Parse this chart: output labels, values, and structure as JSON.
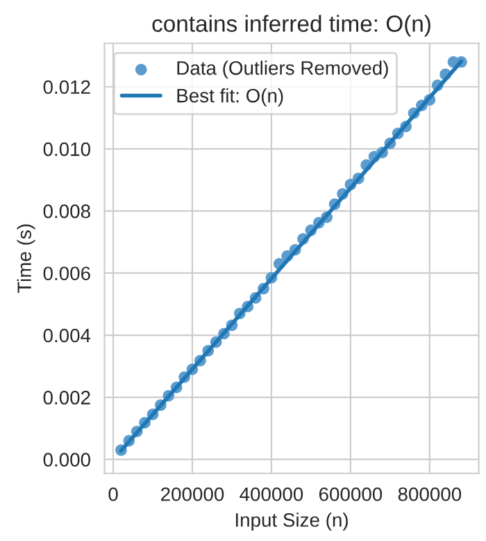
{
  "chart_data": {
    "type": "scatter",
    "title": "contains inferred time: O(n)",
    "xlabel": "Input Size (n)",
    "ylabel": "Time (s)",
    "xlim": [
      -22000,
      924000
    ],
    "ylim": [
      -0.00045,
      0.0134
    ],
    "xticks": [
      0,
      200000,
      400000,
      600000,
      800000
    ],
    "yticks": [
      {
        "value": 0,
        "label": "0.000"
      },
      {
        "value": 0.002,
        "label": "0.002"
      },
      {
        "value": 0.004,
        "label": "0.004"
      },
      {
        "value": 0.006,
        "label": "0.006"
      },
      {
        "value": 0.008,
        "label": "0.008"
      },
      {
        "value": 0.01,
        "label": "0.010"
      },
      {
        "value": 0.012,
        "label": "0.012"
      }
    ],
    "grid": true,
    "legend": "top left",
    "series": [
      {
        "name": "Data (Outliers Removed)",
        "color": "#5b9ccf",
        "marker": "circle",
        "x": [
          20000,
          40000,
          60000,
          80000,
          100000,
          120000,
          140000,
          160000,
          180000,
          200000,
          220000,
          240000,
          260000,
          280000,
          300000,
          320000,
          340000,
          360000,
          380000,
          400000,
          420000,
          440000,
          460000,
          480000,
          500000,
          520000,
          540000,
          560000,
          580000,
          600000,
          620000,
          640000,
          660000,
          680000,
          700000,
          720000,
          740000,
          760000,
          780000,
          800000,
          820000,
          840000,
          860000,
          880000
        ],
        "values": [
          0.0003,
          0.0006,
          0.0009,
          0.00118,
          0.00145,
          0.00175,
          0.00205,
          0.00232,
          0.00265,
          0.0029,
          0.00318,
          0.0035,
          0.00378,
          0.00405,
          0.00432,
          0.0047,
          0.00492,
          0.0052,
          0.0055,
          0.00585,
          0.0063,
          0.00655,
          0.00675,
          0.0071,
          0.00738,
          0.00762,
          0.0078,
          0.00822,
          0.00855,
          0.00885,
          0.00905,
          0.00948,
          0.00975,
          0.00988,
          0.01018,
          0.0105,
          0.01072,
          0.01115,
          0.0114,
          0.01158,
          0.01205,
          0.0124,
          0.0128,
          0.0128
        ]
      },
      {
        "name": "Best fit: O(n)",
        "type": "line",
        "color": "#1f77b4",
        "line_style": "solid",
        "x": [
          20000,
          880000
        ],
        "values": [
          0.00028,
          0.01282
        ]
      }
    ]
  }
}
